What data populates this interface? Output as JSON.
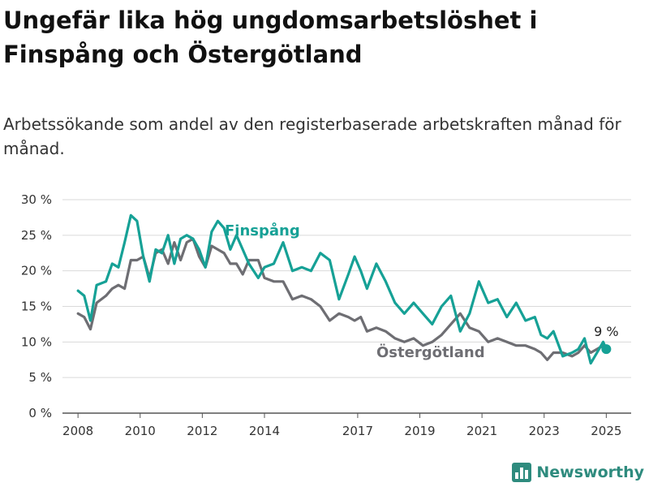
{
  "title": "Ungefär lika hög ungdomsarbetslöshet i Finspång och Östergötland",
  "subtitle": "Arbetssökande som andel av den registerbaserade arbetskraften månad för månad.",
  "brand": "Newsworthy",
  "colors": {
    "finspang": "#16a196",
    "ostergotland": "#6e6e73",
    "grid": "#d9d9d9",
    "axis": "#555555"
  },
  "chart_data": {
    "type": "line",
    "title": "Ungefär lika hög ungdomsarbetslöshet i Finspång och Östergötland",
    "ylim": [
      0,
      30
    ],
    "xlim": [
      2007.5,
      2025.8
    ],
    "y_ticks": [
      0,
      5,
      10,
      15,
      20,
      25,
      30
    ],
    "y_tick_labels": [
      "0 %",
      "5 %",
      "10 %",
      "15 %",
      "20 %",
      "25 %",
      "30 %"
    ],
    "x_ticks": [
      2008,
      2010,
      2012,
      2014,
      2017,
      2019,
      2021,
      2023,
      2025
    ],
    "x_tick_labels": [
      "2008",
      "2010",
      "2012",
      "2014",
      "2017",
      "2019",
      "2021",
      "2023",
      "2025"
    ],
    "grid": "horizontal",
    "end_value_label": "9 %",
    "series": [
      {
        "name": "Finspång",
        "key": "finspang",
        "x": [
          2008.0,
          2008.2,
          2008.4,
          2008.6,
          2008.9,
          2009.1,
          2009.3,
          2009.5,
          2009.7,
          2009.9,
          2010.1,
          2010.3,
          2010.5,
          2010.7,
          2010.9,
          2011.1,
          2011.3,
          2011.5,
          2011.7,
          2011.9,
          2012.1,
          2012.3,
          2012.5,
          2012.7,
          2012.9,
          2013.1,
          2013.3,
          2013.5,
          2013.8,
          2014.0,
          2014.3,
          2014.6,
          2014.9,
          2015.2,
          2015.5,
          2015.8,
          2016.1,
          2016.4,
          2016.7,
          2016.9,
          2017.1,
          2017.3,
          2017.6,
          2017.9,
          2018.2,
          2018.5,
          2018.8,
          2019.1,
          2019.4,
          2019.7,
          2020.0,
          2020.3,
          2020.6,
          2020.9,
          2021.2,
          2021.5,
          2021.8,
          2022.1,
          2022.4,
          2022.7,
          2022.9,
          2023.1,
          2023.3,
          2023.6,
          2023.9,
          2024.1,
          2024.3,
          2024.5,
          2024.7,
          2024.9,
          2025.0
        ],
        "y": [
          17.2,
          16.5,
          13.0,
          18.0,
          18.5,
          21.0,
          20.5,
          24.0,
          27.8,
          27.0,
          22.0,
          18.5,
          23.0,
          22.5,
          25.0,
          21.0,
          24.5,
          25.0,
          24.5,
          23.0,
          20.5,
          25.5,
          27.0,
          26.0,
          23.0,
          25.0,
          23.0,
          21.0,
          19.0,
          20.5,
          21.0,
          24.0,
          20.0,
          20.5,
          20.0,
          22.5,
          21.5,
          16.0,
          19.5,
          22.0,
          20.0,
          17.5,
          21.0,
          18.5,
          15.5,
          14.0,
          15.5,
          14.0,
          12.5,
          15.0,
          16.5,
          11.5,
          14.0,
          18.5,
          15.5,
          16.0,
          13.5,
          15.5,
          13.0,
          13.5,
          11.0,
          10.5,
          11.5,
          8.0,
          8.5,
          9.0,
          10.5,
          7.0,
          8.5,
          10.0,
          9.0
        ]
      },
      {
        "name": "Östergötland",
        "key": "ostergotland",
        "x": [
          2008.0,
          2008.2,
          2008.4,
          2008.6,
          2008.9,
          2009.1,
          2009.3,
          2009.5,
          2009.7,
          2009.9,
          2010.1,
          2010.3,
          2010.5,
          2010.7,
          2010.9,
          2011.1,
          2011.3,
          2011.5,
          2011.7,
          2011.9,
          2012.1,
          2012.3,
          2012.5,
          2012.7,
          2012.9,
          2013.1,
          2013.3,
          2013.5,
          2013.8,
          2014.0,
          2014.3,
          2014.6,
          2014.9,
          2015.2,
          2015.5,
          2015.8,
          2016.1,
          2016.4,
          2016.7,
          2016.9,
          2017.1,
          2017.3,
          2017.6,
          2017.9,
          2018.2,
          2018.5,
          2018.8,
          2019.1,
          2019.4,
          2019.7,
          2020.0,
          2020.3,
          2020.6,
          2020.9,
          2021.2,
          2021.5,
          2021.8,
          2022.1,
          2022.4,
          2022.7,
          2022.9,
          2023.1,
          2023.3,
          2023.6,
          2023.9,
          2024.1,
          2024.3,
          2024.5,
          2024.7,
          2024.9,
          2025.0
        ],
        "y": [
          14.0,
          13.5,
          11.8,
          15.5,
          16.5,
          17.5,
          18.0,
          17.5,
          21.5,
          21.5,
          22.0,
          19.0,
          22.5,
          23.0,
          21.0,
          24.0,
          21.5,
          24.0,
          24.5,
          22.0,
          20.5,
          23.5,
          23.0,
          22.5,
          21.0,
          21.0,
          19.5,
          21.5,
          21.5,
          19.0,
          18.5,
          18.5,
          16.0,
          16.5,
          16.0,
          15.0,
          13.0,
          14.0,
          13.5,
          13.0,
          13.5,
          11.5,
          12.0,
          11.5,
          10.5,
          10.0,
          10.5,
          9.5,
          10.0,
          11.0,
          12.5,
          14.0,
          12.0,
          11.5,
          10.0,
          10.5,
          10.0,
          9.5,
          9.5,
          9.0,
          8.5,
          7.5,
          8.5,
          8.5,
          8.0,
          8.5,
          9.5,
          8.5,
          9.0,
          9.5,
          9.0
        ]
      }
    ]
  }
}
